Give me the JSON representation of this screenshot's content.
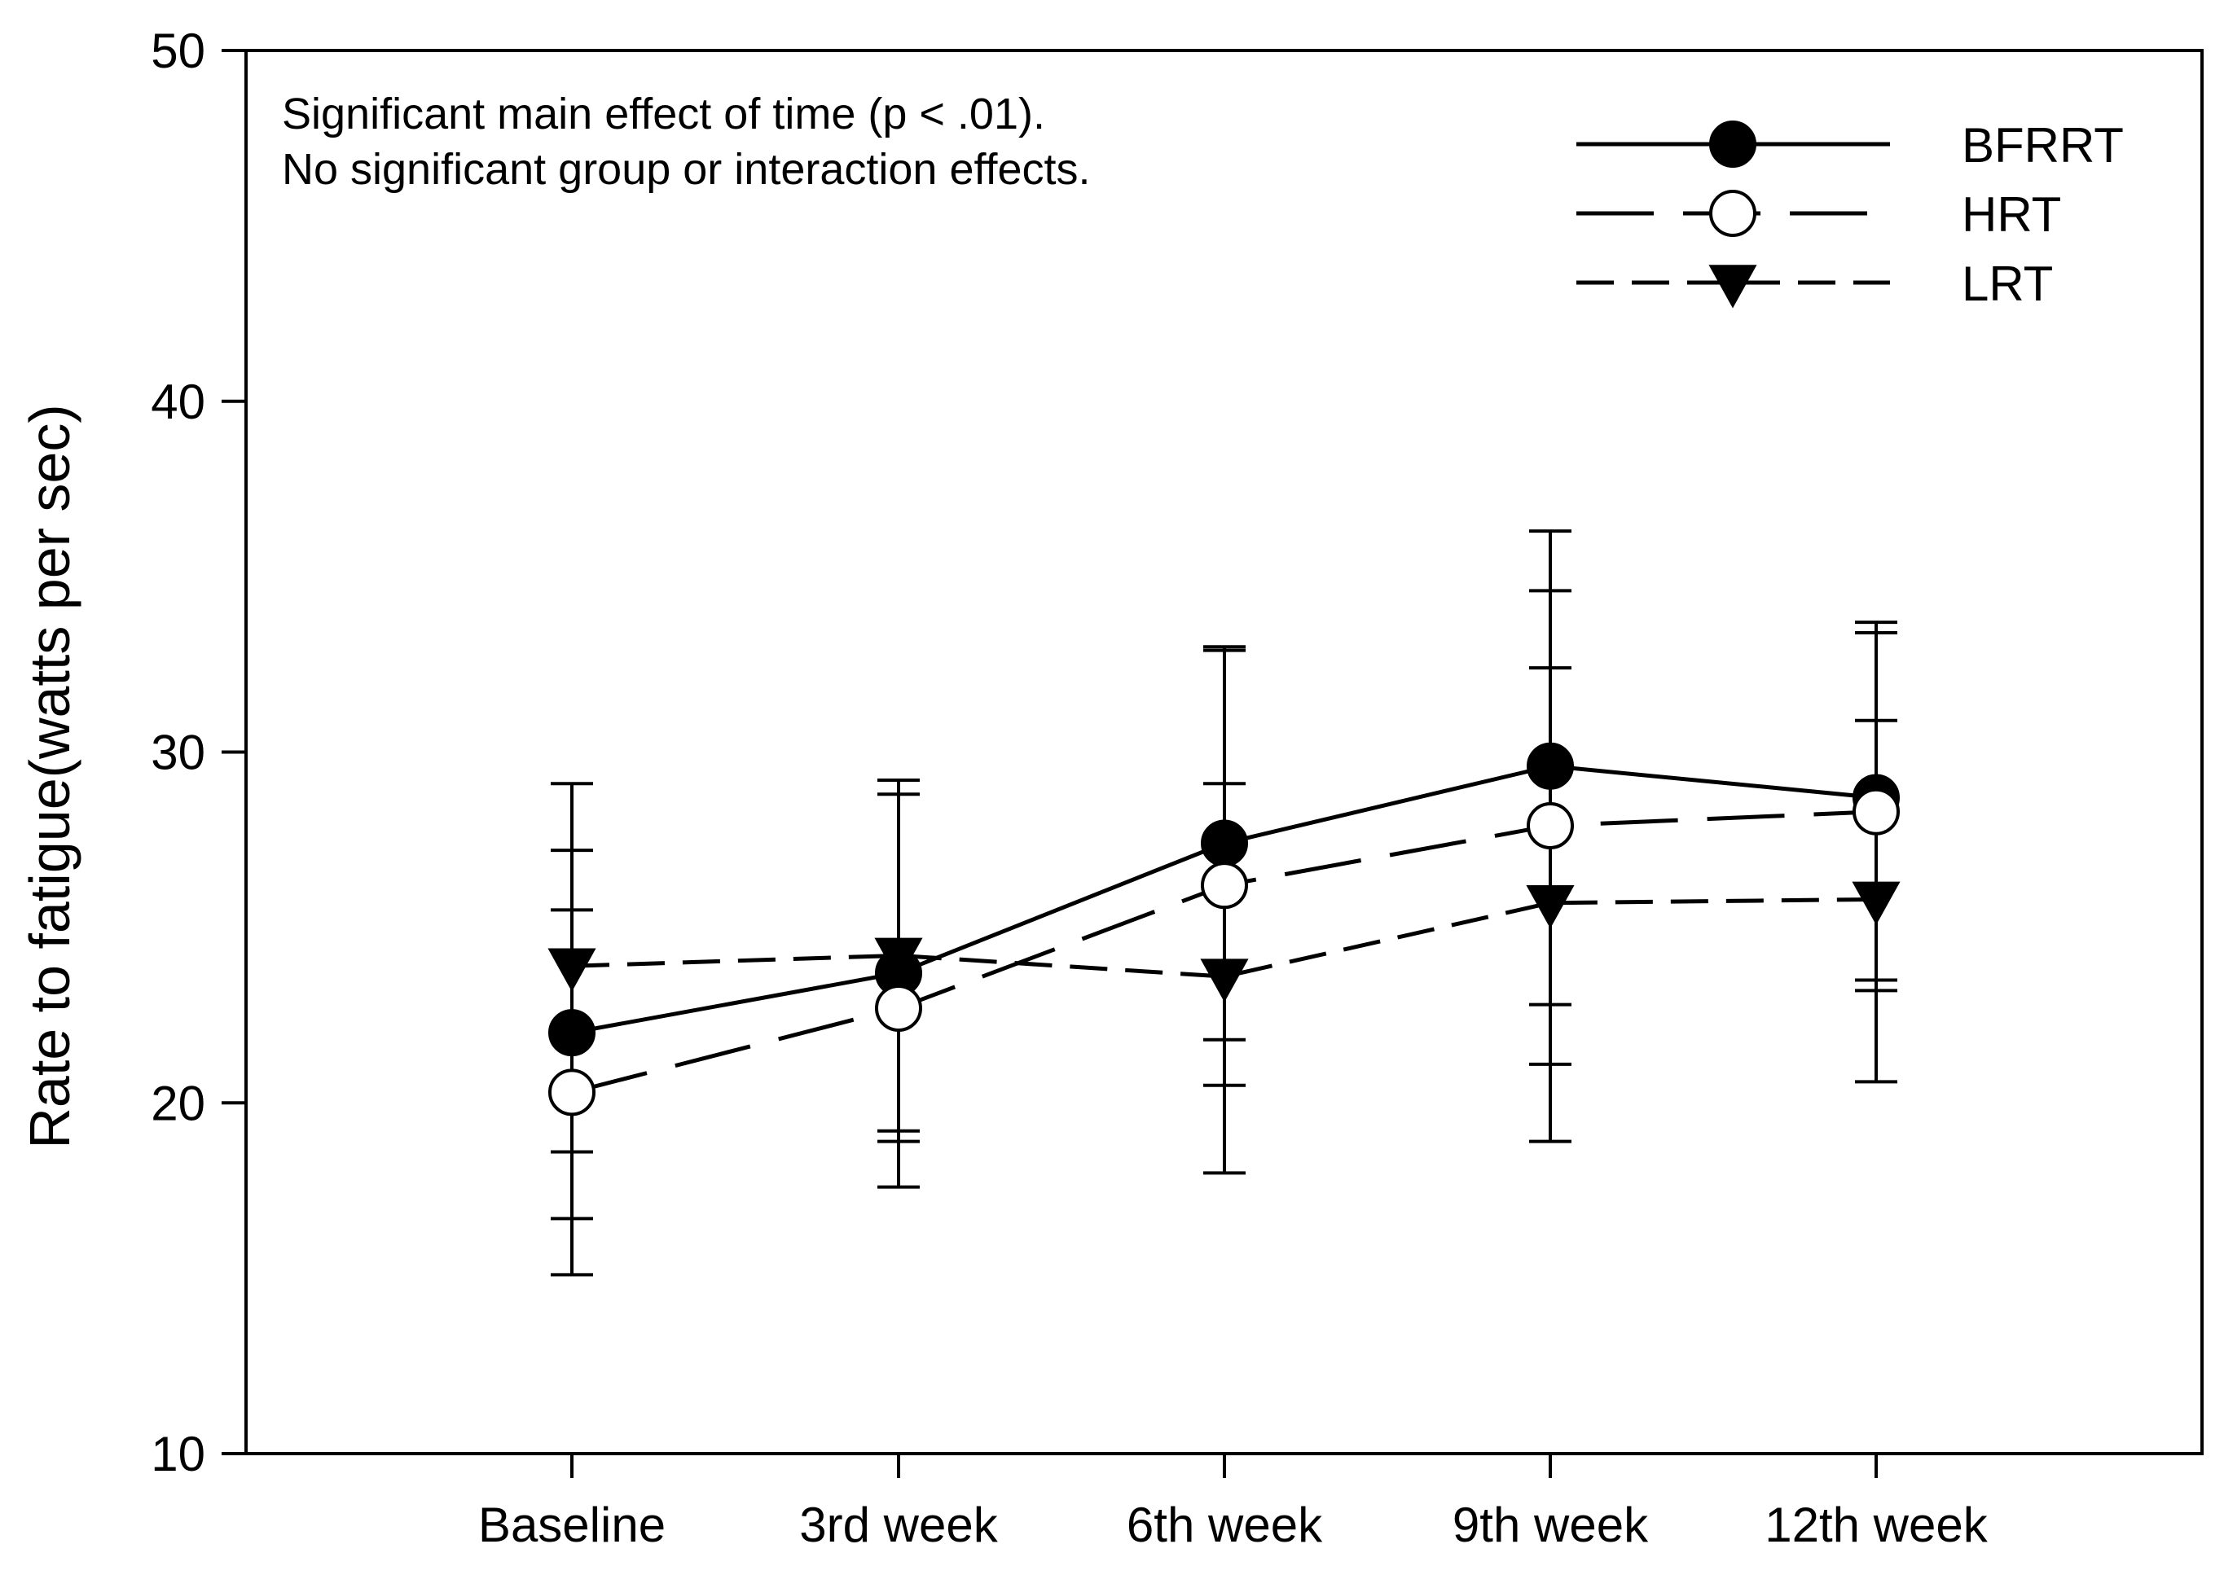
{
  "chart_data": {
    "type": "line",
    "title": "",
    "xlabel": "",
    "ylabel": "Rate to fatigue(watts per sec)",
    "ylim": [
      10,
      50
    ],
    "yticks": [
      10,
      20,
      30,
      40,
      50
    ],
    "categories": [
      "Baseline",
      "3rd week",
      "6th week",
      "9th week",
      "12th week"
    ],
    "grid": false,
    "legend_position": "top-right",
    "annotations": [
      "Significant main effect of time (p < .01).",
      "No significant group or interaction effects."
    ],
    "series": [
      {
        "name": "BFRRT",
        "marker": "filled-circle",
        "line_style": "solid",
        "values": [
          22.0,
          23.7,
          27.4,
          29.6,
          28.7
        ],
        "error": [
          [
            18.6,
            25.5
          ],
          [
            19.2,
            28.8
          ],
          [
            21.8,
            32.9
          ],
          [
            22.8,
            36.3
          ],
          [
            23.5,
            33.7
          ]
        ]
      },
      {
        "name": "HRT",
        "marker": "open-circle",
        "line_style": "long-dash",
        "values": [
          20.3,
          22.7,
          26.2,
          27.9,
          28.3
        ],
        "error": [
          [
            15.1,
            27.2
          ],
          [
            17.6,
            29.2
          ],
          [
            18.0,
            33.0
          ],
          [
            21.1,
            34.6
          ],
          [
            20.6,
            33.4
          ]
        ]
      },
      {
        "name": "LRT",
        "marker": "filled-triangle-down",
        "line_style": "short-dash",
        "values": [
          23.9,
          24.2,
          23.6,
          25.7,
          25.8
        ],
        "error": [
          [
            16.7,
            29.1
          ],
          [
            18.9,
            29.2
          ],
          [
            20.5,
            29.1
          ],
          [
            18.9,
            32.4
          ],
          [
            23.2,
            30.9
          ]
        ]
      }
    ]
  },
  "colors": {
    "line": "#000000",
    "background": "#ffffff"
  }
}
